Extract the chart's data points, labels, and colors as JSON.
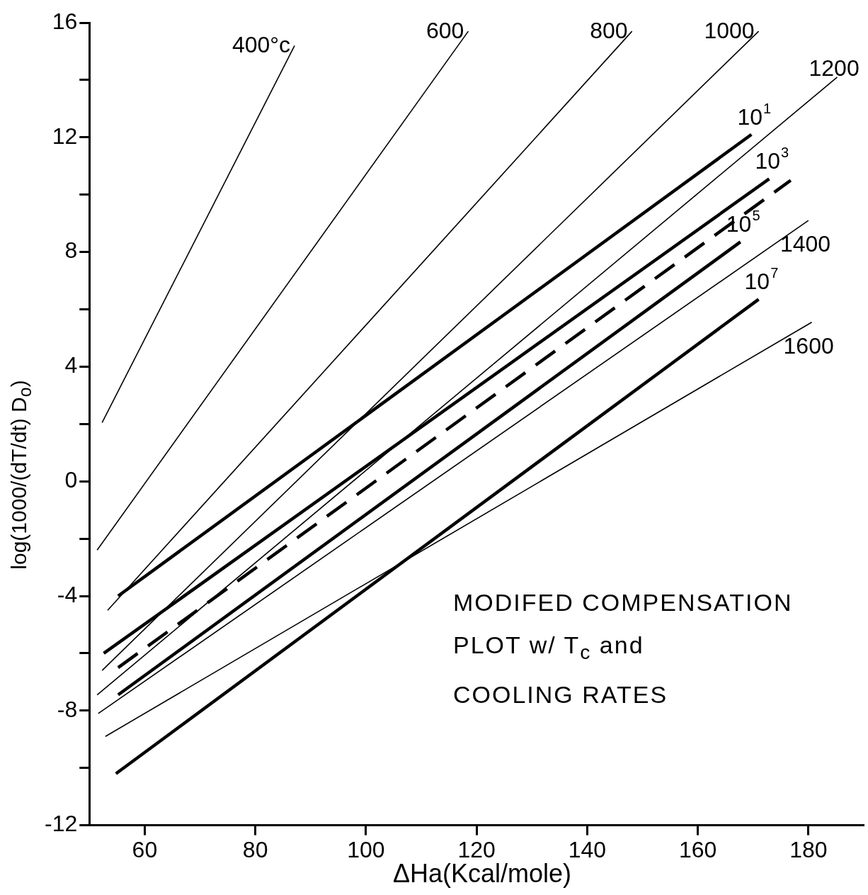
{
  "chart_data": {
    "type": "line",
    "xlabel": "ΔHa(Kcal/mole)",
    "ylabel": "log(1000/(dT/dt) D$_{o}$)",
    "annotations": [
      "MODIFED COMPENSATION",
      "PLOT w/ T$_{c}$ and",
      "COOLING RATES"
    ],
    "xlim": [
      50,
      190
    ],
    "xticks": [
      60,
      80,
      100,
      120,
      140,
      160,
      180
    ],
    "ylim": [
      -12,
      16
    ],
    "yticks": [
      -12,
      {
        "value": -10,
        "label": null
      },
      -8,
      {
        "value": -6,
        "label": null
      },
      -4,
      {
        "value": -2,
        "label": null
      },
      0,
      {
        "value": 2,
        "label": null
      },
      4,
      {
        "value": 6,
        "label": null
      },
      8,
      {
        "value": 10,
        "label": null
      },
      12,
      {
        "value": 14,
        "label": null
      },
      16
    ],
    "grid": false,
    "legend": false,
    "marker": "none",
    "series": [
      {
        "name": "400°c",
        "color": "#000000",
        "x": [
          52.3,
          87.1
        ],
        "values": [
          2.05,
          15.2
        ]
      },
      {
        "name": "600",
        "color": "#000000",
        "x": [
          51.4,
          118.5
        ],
        "values": [
          -2.4,
          15.7
        ]
      },
      {
        "name": "800",
        "color": "#000000",
        "x": [
          53.3,
          148.1
        ],
        "values": [
          -4.5,
          15.7
        ]
      },
      {
        "name": "1000",
        "color": "#000000",
        "x": [
          52.3,
          171
        ],
        "values": [
          -6.6,
          15.7
        ]
      },
      {
        "name": "1200",
        "color": "#000000",
        "x": [
          51.4,
          185.2
        ],
        "values": [
          -7.45,
          14.1
        ]
      },
      {
        "name": "1400",
        "color": "#000000",
        "x": [
          51.6,
          180
        ],
        "values": [
          -8.1,
          9.1
        ]
      },
      {
        "name": "1600",
        "color": "#000000",
        "x": [
          52.9,
          180.6
        ],
        "values": [
          -8.9,
          5.55
        ]
      },
      {
        "name": "10$^{1}$",
        "color": "#000000",
        "x": [
          55.2,
          169.7
        ],
        "values": [
          -4.0,
          12.1
        ]
      },
      {
        "name": "10$^{3}$",
        "color": "#000000",
        "x": [
          52.6,
          172.9
        ],
        "values": [
          -6.0,
          10.55
        ]
      },
      {
        "color": "#000000",
        "x": [
          55.2,
          176.8
        ],
        "values": [
          -6.5,
          10.5
        ],
        "line_style": "dashed"
      },
      {
        "name": "10$^{5}$",
        "color": "#000000",
        "x": [
          55.2,
          167.7
        ],
        "values": [
          -7.45,
          8.35
        ]
      },
      {
        "name": "10$^{7}$",
        "color": "#000000",
        "x": [
          54.8,
          171
        ],
        "values": [
          -10.2,
          6.35
        ]
      }
    ]
  }
}
